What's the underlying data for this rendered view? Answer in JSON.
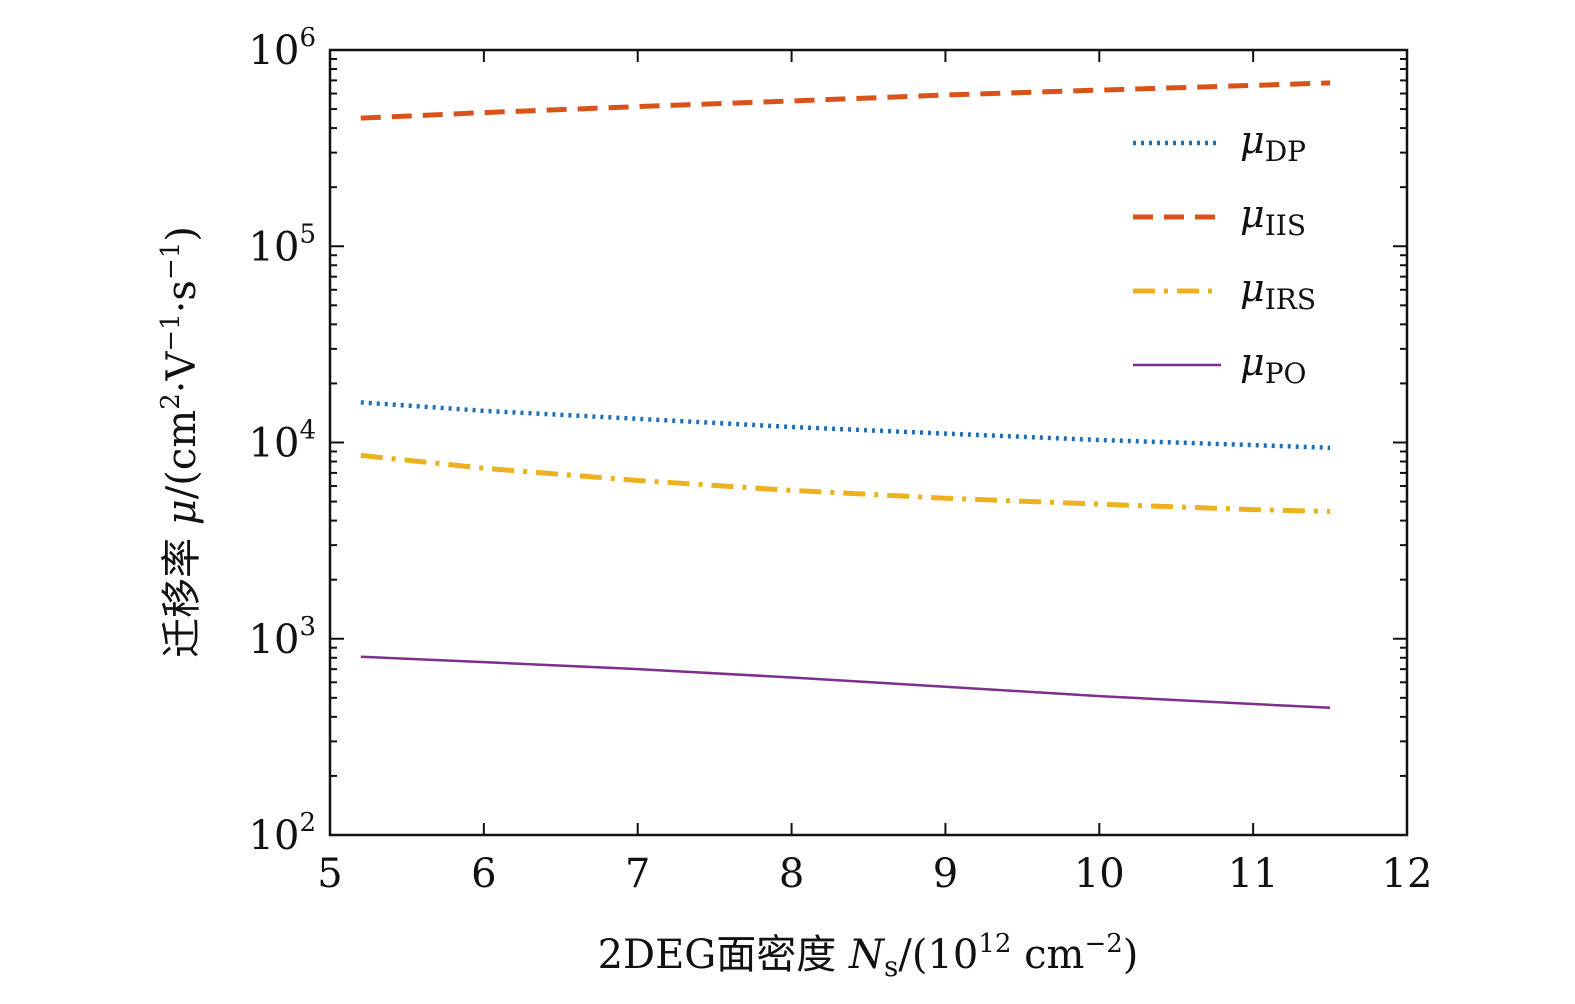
{
  "chart_data": {
    "type": "line",
    "xlabel": {
      "prefix": "2DEG面密度 ",
      "var": "N",
      "sub": "s",
      "unit_open": "/(10",
      "sup": "12",
      "unit_mid": " cm",
      "sup2": "−2",
      "unit_close": ")"
    },
    "ylabel": {
      "prefix": "迁移率 ",
      "var": "μ",
      "unit_open": "/(cm",
      "sup1": "2",
      "mid": "·V",
      "sup2": "−1",
      "mid2": "·s",
      "sup3": "−1",
      "unit_close": ")"
    },
    "xlim": [
      5,
      12
    ],
    "ylim": [
      100,
      1000000
    ],
    "yscale": "log",
    "xticks": [
      "5",
      "6",
      "7",
      "8",
      "9",
      "10",
      "11",
      "12"
    ],
    "yticks": [
      {
        "value": 100,
        "base": "10",
        "exp": "2"
      },
      {
        "value": 1000,
        "base": "10",
        "exp": "3"
      },
      {
        "value": 10000,
        "base": "10",
        "exp": "4"
      },
      {
        "value": 100000,
        "base": "10",
        "exp": "5"
      },
      {
        "value": 1000000,
        "base": "10",
        "exp": "6"
      }
    ],
    "grid": false,
    "legend_position": "top-right",
    "x": [
      5.2,
      6,
      7,
      8,
      9,
      10,
      11,
      11.5
    ],
    "series": [
      {
        "name": "μ",
        "sub": "DP",
        "style": "dotted",
        "color": "#1f6fb5",
        "values": [
          16000,
          14500,
          13200,
          12000,
          11100,
          10300,
          9700,
          9400
        ]
      },
      {
        "name": "μ",
        "sub": "IIS",
        "style": "dashed",
        "color": "#d95319",
        "values": [
          450000,
          480000,
          515000,
          550000,
          590000,
          625000,
          660000,
          680000
        ]
      },
      {
        "name": "μ",
        "sub": "IRS",
        "style": "dashdot",
        "color": "#edb120",
        "values": [
          8600,
          7400,
          6400,
          5700,
          5200,
          4850,
          4550,
          4450
        ]
      },
      {
        "name": "μ",
        "sub": "PO",
        "style": "solid",
        "color": "#7e2f8e",
        "values": [
          810,
          760,
          700,
          635,
          570,
          510,
          465,
          445
        ]
      }
    ]
  }
}
